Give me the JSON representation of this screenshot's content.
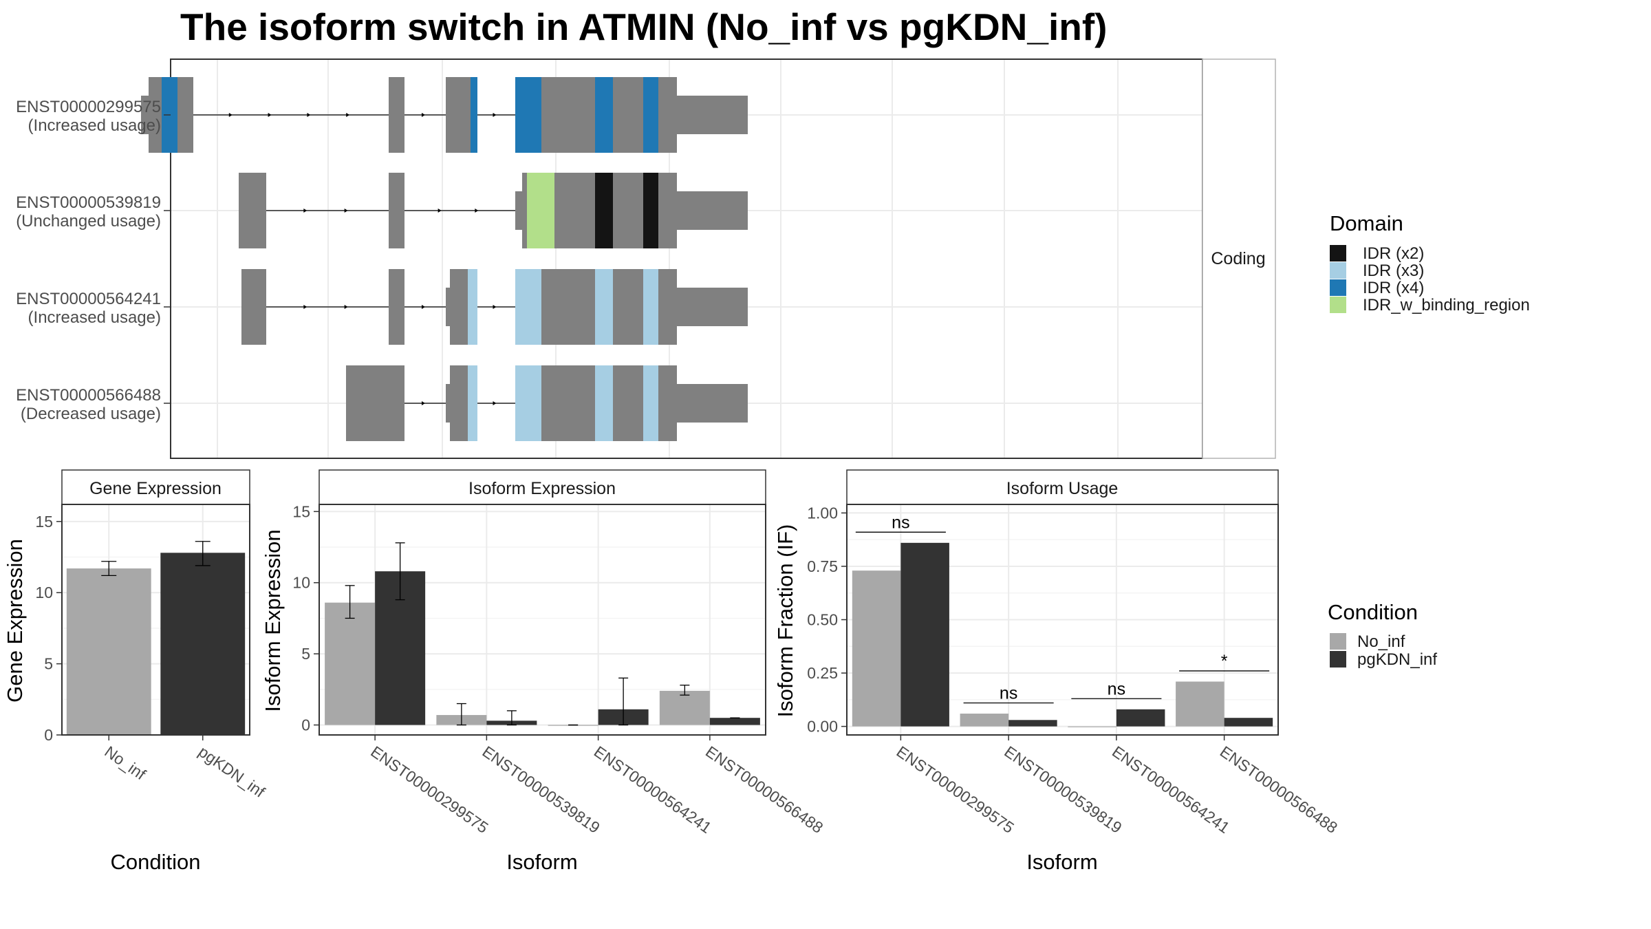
{
  "title": "The isoform switch in ATMIN (No_inf vs pgKDN_inf)",
  "colors": {
    "exon": "#808080",
    "IDR (x2)": "#141414",
    "IDR (x3)": "#a6cee3",
    "IDR (x4)": "#1f78b4",
    "IDR_w_binding_region": "#b2df8a",
    "No_inf": "#a8a8a8",
    "pgKDN_inf": "#333333"
  },
  "chart_data": [
    {
      "type": "transcript-structure",
      "strip_label": "Coding",
      "transcripts": [
        {
          "id": "ENST00000299575",
          "usage": "(Increased usage)",
          "exons": [
            [
              216,
              281
            ],
            [
              565,
              588
            ],
            [
              648,
              694
            ],
            [
              749,
              984
            ],
            [
              984,
              1087
            ]
          ],
          "utr": [
            [
              205,
              216
            ],
            [
              984,
              1087
            ]
          ],
          "domains": [
            {
              "name": "IDR (x4)",
              "range": [
                235,
                258
              ]
            },
            {
              "name": "IDR (x4)",
              "range": [
                684,
                694
              ]
            },
            {
              "name": "IDR (x4)",
              "range": [
                749,
                787
              ]
            },
            {
              "name": "IDR (x4)",
              "range": [
                865,
                891
              ]
            },
            {
              "name": "IDR (x4)",
              "range": [
                935,
                957
              ]
            }
          ]
        },
        {
          "id": "ENST00000539819",
          "usage": "(Unchanged usage)",
          "exons": [
            [
              347,
              387
            ],
            [
              565,
              588
            ],
            [
              759,
              984
            ],
            [
              984,
              1087
            ]
          ],
          "utr": [
            [
              749,
              759
            ],
            [
              984,
              1087
            ]
          ],
          "domains": [
            {
              "name": "IDR_w_binding_region",
              "range": [
                766,
                806
              ]
            },
            {
              "name": "IDR (x2)",
              "range": [
                865,
                891
              ]
            },
            {
              "name": "IDR (x2)",
              "range": [
                935,
                957
              ]
            }
          ]
        },
        {
          "id": "ENST00000564241",
          "usage": "(Increased usage)",
          "exons": [
            [
              351,
              387
            ],
            [
              565,
              588
            ],
            [
              654,
              694
            ],
            [
              749,
              984
            ],
            [
              984,
              1087
            ]
          ],
          "utr": [
            [
              648,
              654
            ],
            [
              984,
              1087
            ]
          ],
          "domains": [
            {
              "name": "IDR (x3)",
              "range": [
                680,
                694
              ]
            },
            {
              "name": "IDR (x3)",
              "range": [
                749,
                787
              ]
            },
            {
              "name": "IDR (x3)",
              "range": [
                865,
                891
              ]
            },
            {
              "name": "IDR (x3)",
              "range": [
                935,
                957
              ]
            }
          ]
        },
        {
          "id": "ENST00000566488",
          "usage": "(Decreased usage)",
          "exons": [
            [
              503,
              588
            ],
            [
              654,
              694
            ],
            [
              749,
              984
            ],
            [
              984,
              1087
            ]
          ],
          "utr": [
            [
              648,
              654
            ],
            [
              984,
              1087
            ]
          ],
          "domains": [
            {
              "name": "IDR (x3)",
              "range": [
                680,
                694
              ]
            },
            {
              "name": "IDR (x3)",
              "range": [
                749,
                787
              ]
            },
            {
              "name": "IDR (x3)",
              "range": [
                865,
                891
              ]
            },
            {
              "name": "IDR (x3)",
              "range": [
                935,
                957
              ]
            }
          ]
        }
      ],
      "legend": {
        "title": "Domain",
        "entries": [
          "IDR (x2)",
          "IDR (x3)",
          "IDR (x4)",
          "IDR_w_binding_region"
        ]
      }
    },
    {
      "type": "bar",
      "strip_label": "Gene Expression",
      "xlabel": "Condition",
      "ylabel": "Gene Expression",
      "categories": [
        "No_inf",
        "pgKDN_inf"
      ],
      "values": [
        11.7,
        12.8
      ],
      "error": [
        [
          11.2,
          12.2
        ],
        [
          11.9,
          13.6
        ]
      ],
      "ylim": [
        0,
        16.2
      ],
      "yticks": [
        0,
        5,
        10,
        15
      ]
    },
    {
      "type": "bar",
      "strip_label": "Isoform Expression",
      "xlabel": "Isoform",
      "ylabel": "Isoform Expression",
      "categories": [
        "ENST00000299575",
        "ENST00000539819",
        "ENST00000564241",
        "ENST00000566488"
      ],
      "series": [
        {
          "name": "No_inf",
          "values": [
            8.6,
            0.7,
            0.0,
            2.4
          ],
          "error": [
            [
              7.5,
              9.8
            ],
            [
              0.0,
              1.5
            ],
            [
              0.0,
              0.0
            ],
            [
              2.1,
              2.8
            ]
          ]
        },
        {
          "name": "pgKDN_inf",
          "values": [
            10.8,
            0.3,
            1.1,
            0.5
          ],
          "error": [
            [
              8.8,
              12.8
            ],
            [
              0.0,
              1.0
            ],
            [
              0.0,
              3.3
            ],
            [
              0.5,
              0.5
            ]
          ]
        }
      ],
      "ylim": [
        -0.7,
        15.5
      ],
      "yticks": [
        0,
        5,
        10,
        15
      ]
    },
    {
      "type": "bar",
      "strip_label": "Isoform Usage",
      "xlabel": "Isoform",
      "ylabel": "Isoform Fraction (IF)",
      "categories": [
        "ENST00000299575",
        "ENST00000539819",
        "ENST00000564241",
        "ENST00000566488"
      ],
      "series": [
        {
          "name": "No_inf",
          "values": [
            0.73,
            0.06,
            0.0,
            0.21
          ]
        },
        {
          "name": "pgKDN_inf",
          "values": [
            0.86,
            0.03,
            0.08,
            0.04
          ]
        }
      ],
      "significance": [
        "ns",
        "ns",
        "ns",
        "*"
      ],
      "ylim": [
        -0.04,
        1.04
      ],
      "yticks": [
        "0.00",
        "0.25",
        "0.50",
        "0.75",
        "1.00"
      ],
      "legend": {
        "title": "Condition",
        "entries": [
          "No_inf",
          "pgKDN_inf"
        ]
      }
    }
  ]
}
